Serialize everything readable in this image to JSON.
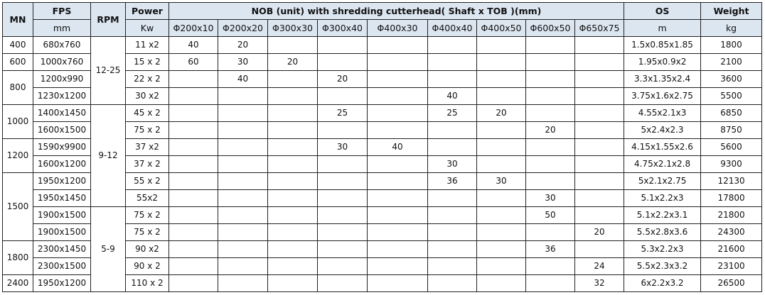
{
  "header": {
    "mn": "MN",
    "fps": "FPS",
    "fps_unit": "mm",
    "rpm": "RPM",
    "power": "Power",
    "power_unit": "Kw",
    "nob": "NOB (unit) with shredding cutterhead( Shaft x TOB )(mm)",
    "nob_columns": [
      "Φ200x10",
      "Φ200x20",
      "Φ300x30",
      "Φ300x40",
      "Φ400x30",
      "Φ400x40",
      "Φ400x50",
      "Φ600x50",
      "Φ650x75"
    ],
    "os": "OS",
    "os_unit": "m",
    "weight": "Weight",
    "weight_unit": "kg"
  },
  "colors": {
    "header_bg": "#dce6f1",
    "border": "#222222"
  },
  "mn_groups": [
    {
      "value": "400",
      "rows": 1
    },
    {
      "value": "600",
      "rows": 1
    },
    {
      "value": "800",
      "rows": 2
    },
    {
      "value": "1000",
      "rows": 2
    },
    {
      "value": "1200",
      "rows": 2
    },
    {
      "value": "1500",
      "rows": 4
    },
    {
      "value": "1800",
      "rows": 2
    },
    {
      "value": "2400",
      "rows": 1
    }
  ],
  "rpm_groups": [
    {
      "value": "12-25",
      "rows": 4
    },
    {
      "value": "9-12",
      "rows": 6
    },
    {
      "value": "5-9",
      "rows": 5
    }
  ],
  "rows": [
    {
      "fps": "680x760",
      "power": "11 x2",
      "nob": [
        "40",
        "20",
        "",
        "",
        "",
        "",
        "",
        "",
        ""
      ],
      "os": "1.5x0.85x1.85",
      "weight": "1800"
    },
    {
      "fps": "1000x760",
      "power": "15 x 2",
      "nob": [
        "60",
        "30",
        "20",
        "",
        "",
        "",
        "",
        "",
        ""
      ],
      "os": "1.95x0.9x2",
      "weight": "2100"
    },
    {
      "fps": "1200x990",
      "power": "22 x 2",
      "nob": [
        "",
        "40",
        "",
        "20",
        "",
        "",
        "",
        "",
        ""
      ],
      "os": "3.3x1.35x2.4",
      "weight": "3600"
    },
    {
      "fps": "1230x1200",
      "power": "30 x2",
      "nob": [
        "",
        "",
        "",
        "",
        "",
        "40",
        "",
        "",
        ""
      ],
      "os": "3.75x1.6x2.75",
      "weight": "5500"
    },
    {
      "fps": "1400x1450",
      "power": "45 x 2",
      "nob": [
        "",
        "",
        "",
        "25",
        "",
        "25",
        "20",
        "",
        ""
      ],
      "os": "4.55x2.1x3",
      "weight": "6850"
    },
    {
      "fps": "1600x1500",
      "power": "75 x 2",
      "nob": [
        "",
        "",
        "",
        "",
        "",
        "",
        "",
        "20",
        ""
      ],
      "os": "5x2.4x2.3",
      "weight": "8750"
    },
    {
      "fps": "1590x9900",
      "power": "37 x2",
      "nob": [
        "",
        "",
        "",
        "30",
        "40",
        "",
        "",
        "",
        ""
      ],
      "os": "4.15x1.55x2.6",
      "weight": "5600"
    },
    {
      "fps": "1600x1200",
      "power": "37 x 2",
      "nob": [
        "",
        "",
        "",
        "",
        "",
        "30",
        "",
        "",
        ""
      ],
      "os": "4.75x2.1x2.8",
      "weight": "9300"
    },
    {
      "fps": "1950x1200",
      "power": "55 x 2",
      "nob": [
        "",
        "",
        "",
        "",
        "",
        "36",
        "30",
        "",
        ""
      ],
      "os": "5x2.1x2.75",
      "weight": "12130"
    },
    {
      "fps": "1950x1450",
      "power": "55x2",
      "nob": [
        "",
        "",
        "",
        "",
        "",
        "",
        "",
        "30",
        ""
      ],
      "os": "5.1x2.2x3",
      "weight": "17800"
    },
    {
      "fps": "1900x1500",
      "power": "75 x 2",
      "nob": [
        "",
        "",
        "",
        "",
        "",
        "",
        "",
        "50",
        ""
      ],
      "os": "5.1x2.2x3.1",
      "weight": "21800"
    },
    {
      "fps": "1900x1500",
      "power": "75 x 2",
      "nob": [
        "",
        "",
        "",
        "",
        "",
        "",
        "",
        "",
        "20"
      ],
      "os": "5.5x2.8x3.6",
      "weight": "24300"
    },
    {
      "fps": "2300x1450",
      "power": "90 x2",
      "nob": [
        "",
        "",
        "",
        "",
        "",
        "",
        "",
        "36",
        ""
      ],
      "os": "5.3x2.2x3",
      "weight": "21600"
    },
    {
      "fps": "2300x1500",
      "power": "90 x 2",
      "nob": [
        "",
        "",
        "",
        "",
        "",
        "",
        "",
        "",
        "24"
      ],
      "os": "5.5x2.3x3.2",
      "weight": "23100"
    },
    {
      "fps": "1950x1200",
      "power": "110 x 2",
      "nob": [
        "",
        "",
        "",
        "",
        "",
        "",
        "",
        "",
        "32"
      ],
      "os": "6x2.2x3.2",
      "weight": "26500"
    }
  ]
}
